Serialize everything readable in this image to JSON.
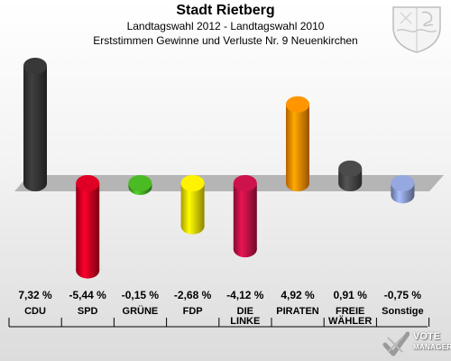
{
  "header": {
    "title": "Stadt Rietberg",
    "subtitle": "Landtagswahl 2012 - Landtagswahl 2010",
    "subtitle2": "Erststimmen Gewinne und Verluste Nr. 9 Neuenkirchen"
  },
  "chart_data": {
    "type": "bar",
    "title": "Stadt Rietberg",
    "categories": [
      "CDU",
      "SPD",
      "GRÜNE",
      "FDP",
      "DIE LINKE",
      "PIRATEN",
      "FREIE WÄHLER",
      "Sonstige"
    ],
    "category_lines": [
      [
        "CDU"
      ],
      [
        "SPD"
      ],
      [
        "GRÜNE"
      ],
      [
        "FDP"
      ],
      [
        "DIE",
        "LINKE"
      ],
      [
        "PIRATEN"
      ],
      [
        "FREIE",
        "WÄHLER"
      ],
      [
        "Sonstige"
      ]
    ],
    "values": [
      7.32,
      -5.44,
      -0.15,
      -2.68,
      -4.12,
      4.92,
      0.91,
      -0.75
    ],
    "value_labels": [
      "7,32 %",
      "-5,44 %",
      "-0,15 %",
      "-2,68 %",
      "-4,12 %",
      "4,92 %",
      "0,91 %",
      "-0,75 %"
    ],
    "colors": [
      "#333333",
      "#cc0022",
      "#44aa22",
      "#eedd00",
      "#bb1144",
      "#ff8800",
      "#444444",
      "#8899cc"
    ],
    "ylim": [
      -6,
      8
    ],
    "xlabel": "",
    "ylabel": ""
  },
  "branding": {
    "line1": "VOTE",
    "line2": "MANAGER"
  }
}
